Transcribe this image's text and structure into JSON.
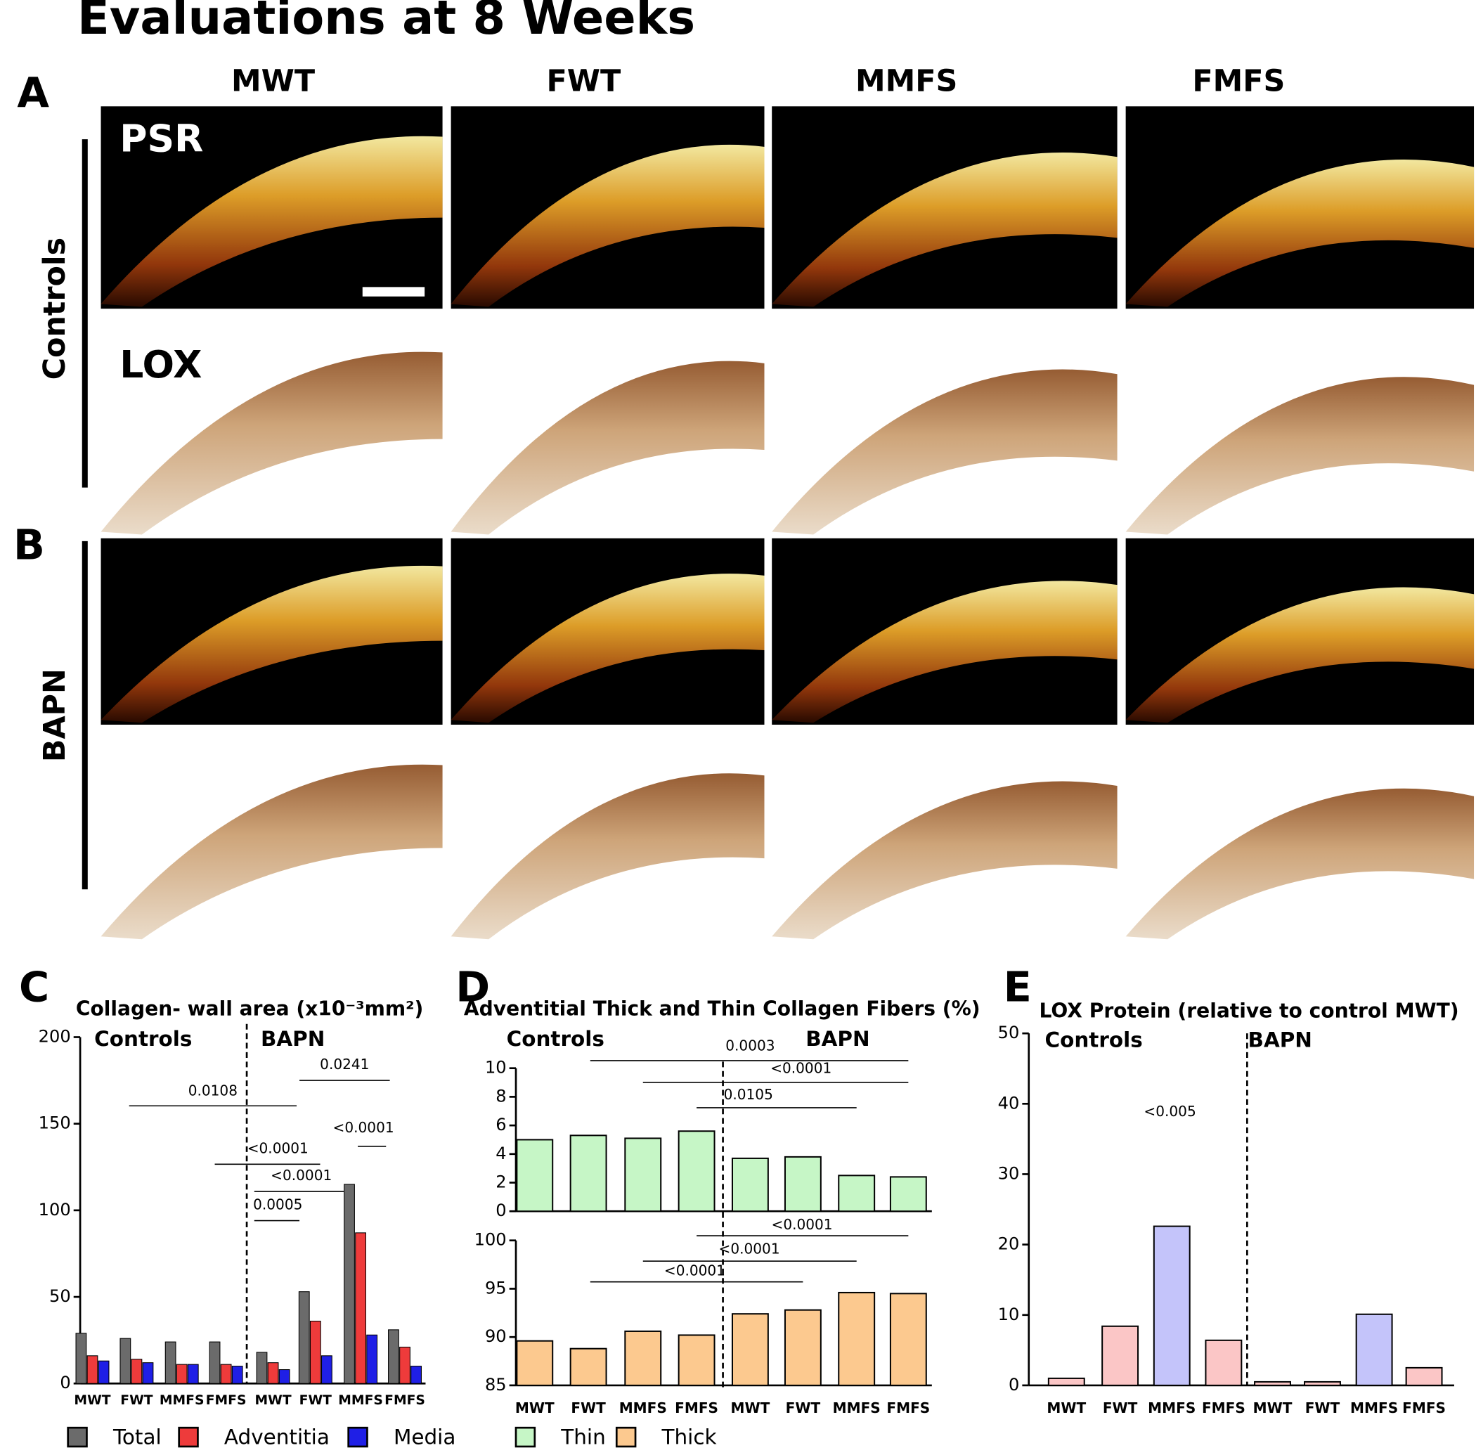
{
  "title": "Evaluations at 8 Weeks",
  "panel_labels": [
    "A",
    "B",
    "C",
    "D",
    "E"
  ],
  "image_grid": {
    "columns": [
      "MWT",
      "FWT",
      "MMFS",
      "FMFS"
    ],
    "rows": [
      "Controls",
      "BAPN"
    ],
    "stains": [
      "PSR",
      "LOX"
    ]
  },
  "chart_data": [
    {
      "type": "bar",
      "title": "Collagen- wall area (x10⁻³mm²)",
      "categories": [
        "MWT",
        "FWT",
        "MMFS",
        "FMFS",
        "MWT",
        "FWT",
        "MMFS",
        "FMFS"
      ],
      "groups": [
        "Controls",
        "BAPN"
      ],
      "series": [
        {
          "name": "Total",
          "color": "#6b6b6b",
          "values": [
            29,
            26,
            24,
            24,
            18,
            53,
            115,
            31
          ]
        },
        {
          "name": "Adventitia",
          "color": "#ee3b3b",
          "values": [
            16,
            14,
            11,
            11,
            12,
            36,
            87,
            21
          ]
        },
        {
          "name": "Media",
          "color": "#1f1fe6",
          "values": [
            13,
            12,
            11,
            10,
            8,
            16,
            28,
            10
          ]
        }
      ],
      "ylim": [
        0,
        200
      ],
      "yticks": [
        0,
        50,
        100,
        150,
        200
      ],
      "annotations": [
        "0.0108",
        "0.0241",
        "<0.0001",
        "<0.0001",
        "<0.0001",
        "0.0005"
      ]
    },
    {
      "type": "bar",
      "title": "Adventitial  Thick and Thin Collagen Fibers (%)",
      "groups": [
        "Controls",
        "BAPN"
      ],
      "series": [
        {
          "name": "Thin",
          "color": "#c6f6c6",
          "values": [
            5.0,
            5.3,
            5.1,
            5.6,
            3.7,
            3.8,
            2.5,
            2.4
          ]
        }
      ],
      "ylim": [
        0,
        10
      ],
      "yticks": [
        0,
        2,
        4,
        6,
        8,
        10
      ],
      "annotations": [
        "0.0003",
        "<0.0001",
        "0.0105"
      ]
    },
    {
      "type": "bar",
      "categories": [
        "MWT",
        "FWT",
        "MMFS",
        "FMFS",
        "MWT",
        "FWT",
        "MMFS",
        "FMFS"
      ],
      "series": [
        {
          "name": "Thick",
          "color": "#fcc98f",
          "values": [
            89.6,
            88.8,
            90.6,
            90.2,
            92.4,
            92.8,
            94.6,
            94.5
          ]
        }
      ],
      "ylim": [
        85,
        100
      ],
      "yticks": [
        85,
        90,
        95,
        100
      ],
      "annotations": [
        "<0.0001",
        "<0.0001",
        "<0.0001"
      ]
    },
    {
      "type": "bar",
      "title": "LOX Protein (relative to control MWT)",
      "categories": [
        "MWT",
        "FWT",
        "MMFS",
        "FMFS",
        "MWT",
        "FWT",
        "MMFS",
        "FMFS"
      ],
      "groups": [
        "Controls",
        "BAPN"
      ],
      "values": [
        1.0,
        8.4,
        22.6,
        6.4,
        0.5,
        0.5,
        10.1,
        2.5
      ],
      "colors": [
        "#fbc6c6",
        "#fbc6c6",
        "#c4c4fa",
        "#fbc6c6",
        "#fbc6c6",
        "#fbc6c6",
        "#c4c4fa",
        "#fbc6c6"
      ],
      "ylim": [
        0,
        50
      ],
      "yticks": [
        0,
        10,
        20,
        30,
        40,
        50
      ],
      "annotations": [
        "<0.005"
      ]
    }
  ]
}
